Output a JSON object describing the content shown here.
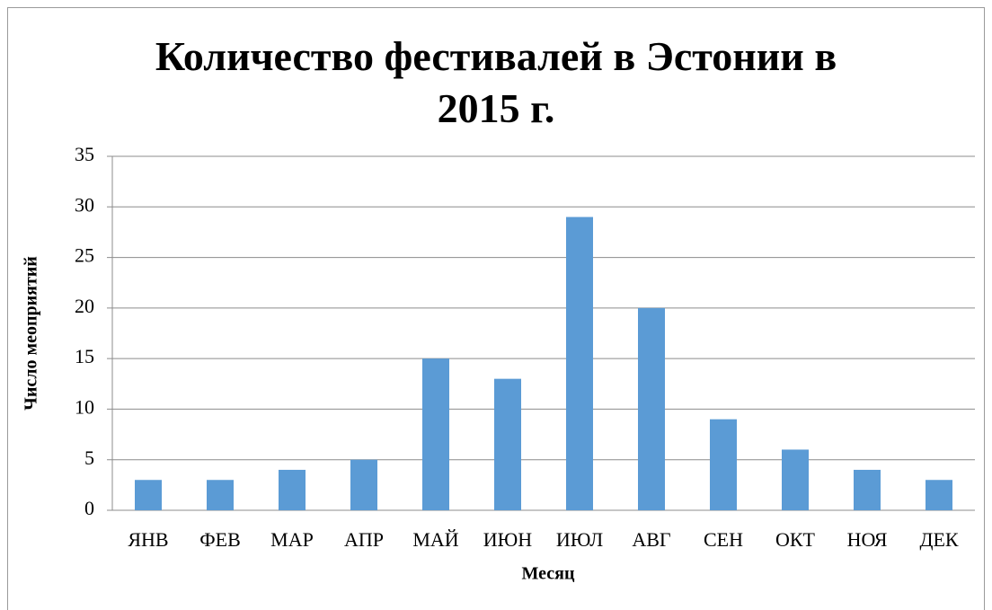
{
  "chart_data": {
    "type": "bar",
    "title": "Количество фестивалей в Эстонии в 2015 г.",
    "categories": [
      "ЯНВ",
      "ФЕВ",
      "МАР",
      "АПР",
      "МАЙ",
      "ИЮН",
      "ИЮЛ",
      "АВГ",
      "СЕН",
      "ОКТ",
      "НОЯ",
      "ДЕК"
    ],
    "values": [
      3,
      3,
      4,
      5,
      15,
      13,
      29,
      20,
      9,
      6,
      4,
      3
    ],
    "color": "#5b9bd5",
    "x_label": "Месяц",
    "y_label": "Число меоприятий",
    "ylim": [
      0,
      35
    ],
    "yticks": [
      0,
      5,
      10,
      15,
      20,
      25,
      30,
      35
    ],
    "grid": true
  }
}
